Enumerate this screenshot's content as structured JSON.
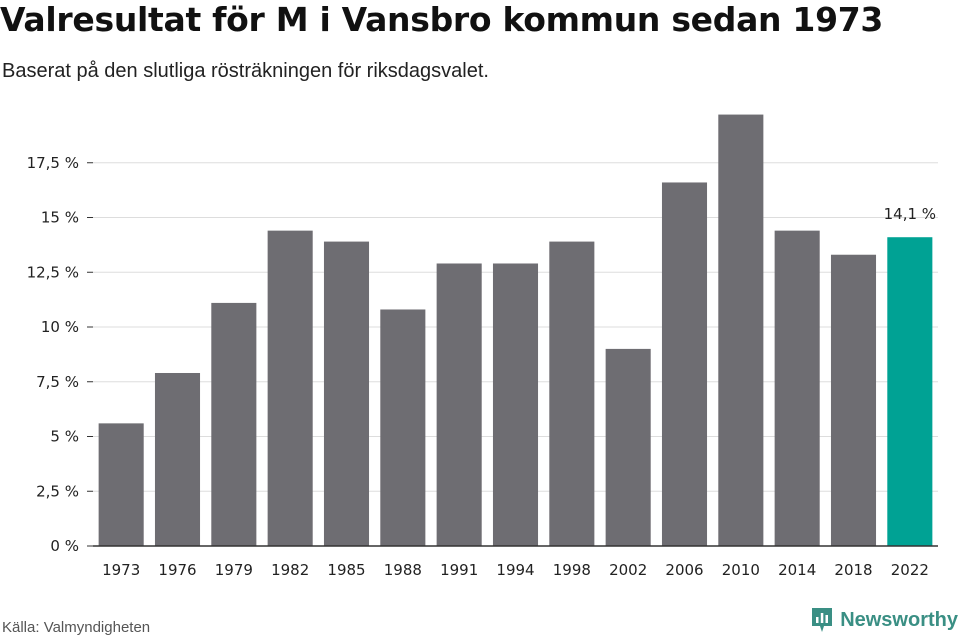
{
  "title": "Valresultat för M i Vansbro kommun sedan 1973",
  "subtitle": "Baserat på den slutliga rösträkningen för riksdagsvalet.",
  "source": "Källa: Valmyndigheten",
  "brand": "Newsworthy",
  "chart_data": {
    "type": "bar",
    "categories": [
      "1973",
      "1976",
      "1979",
      "1982",
      "1985",
      "1988",
      "1991",
      "1994",
      "1998",
      "2002",
      "2006",
      "2010",
      "2014",
      "2018",
      "2022"
    ],
    "values": [
      5.6,
      7.9,
      11.1,
      14.4,
      13.9,
      10.8,
      12.9,
      12.9,
      13.9,
      9.0,
      16.6,
      19.7,
      14.4,
      13.3,
      14.1
    ],
    "ylim": [
      0,
      20
    ],
    "yticks": [
      0,
      2.5,
      5,
      7.5,
      10,
      12.5,
      15,
      17.5
    ],
    "ytick_labels": [
      "0 %",
      "2,5 %",
      "5 %",
      "7,5 %",
      "10 %",
      "12,5 %",
      "15 %",
      "17,5 %"
    ],
    "grid": true,
    "highlight_index": 14,
    "highlight_label": "14,1 %",
    "colors": {
      "bar": "#6e6d72",
      "highlight": "#00a294",
      "grid": "#dddddd",
      "axis": "#333333"
    }
  }
}
